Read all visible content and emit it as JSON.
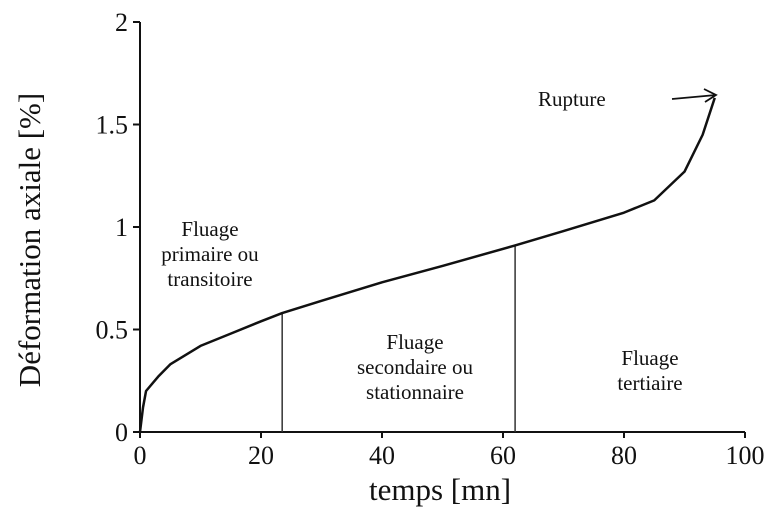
{
  "chart_data": {
    "type": "line",
    "xlabel": "temps [mn]",
    "ylabel": "Déformation axiale [%]",
    "x": [
      0,
      0.5,
      1,
      3,
      5,
      10,
      15,
      20,
      23.5,
      30,
      40,
      50,
      62,
      70,
      80,
      85,
      90,
      93,
      95
    ],
    "series": [
      {
        "name": "Déformation axiale",
        "color": "#111111",
        "values": [
          0,
          0.12,
          0.2,
          0.27,
          0.33,
          0.42,
          0.48,
          0.54,
          0.58,
          0.64,
          0.73,
          0.81,
          0.91,
          0.98,
          1.07,
          1.13,
          1.27,
          1.45,
          1.63
        ]
      }
    ],
    "xlim": [
      0,
      100
    ],
    "ylim": [
      0,
      2
    ],
    "xticks": [
      0,
      20,
      40,
      60,
      80,
      100
    ],
    "yticks": [
      0,
      0.5,
      1,
      1.5,
      2
    ],
    "dividers": [
      {
        "x": 23.5,
        "y": 0.58
      },
      {
        "x": 62,
        "y": 0.91
      }
    ],
    "annotations": [
      {
        "lines": [
          "Fluage",
          "primaire ou",
          "transitoire"
        ]
      },
      {
        "lines": [
          "Fluage",
          "secondaire ou",
          "stationnaire"
        ]
      },
      {
        "lines": [
          "Fluage",
          "tertiaire"
        ]
      },
      {
        "lines": [
          "Rupture"
        ]
      }
    ]
  }
}
